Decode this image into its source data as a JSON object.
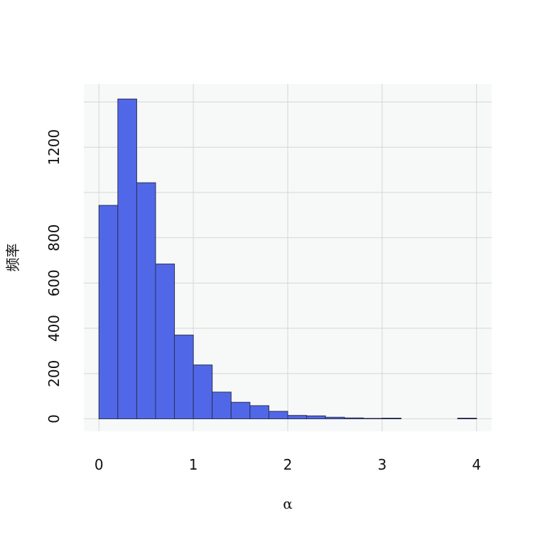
{
  "chart_data": {
    "type": "bar",
    "title": "",
    "xlabel": "α",
    "ylabel": "频率",
    "bin_width": 0.2,
    "bin_edges": [
      0,
      0.2,
      0.4,
      0.6,
      0.8,
      1.0,
      1.2,
      1.4,
      1.6,
      1.8,
      2.0,
      2.2,
      2.4,
      2.6,
      2.8,
      3.0,
      3.2,
      3.4,
      3.6,
      3.8,
      4.0
    ],
    "values": [
      943,
      1413,
      1043,
      684,
      370,
      238,
      118,
      73,
      58,
      33,
      15,
      13,
      7,
      4,
      2,
      3,
      0,
      0,
      0,
      3
    ],
    "xlim": [
      -0.16,
      4.16
    ],
    "ylim": [
      -55,
      1480
    ],
    "x_ticks": [
      0,
      1,
      2,
      3,
      4
    ],
    "x_tick_labels": [
      "0",
      "1",
      "2",
      "3",
      "4"
    ],
    "y_ticks": [
      0,
      200,
      400,
      600,
      800,
      1200
    ],
    "y_tick_labels": [
      "0",
      "200",
      "400",
      "600",
      "800",
      "1200"
    ],
    "y_grid": [
      0,
      200,
      400,
      600,
      800,
      1000,
      1200,
      1400
    ],
    "grid": true,
    "legend": "none",
    "colors": {
      "bar_fill": "#5068E8",
      "bar_stroke": "#2A2F55",
      "panel_bg": "#F7F8F8",
      "grid": "#D6D6D6"
    }
  }
}
